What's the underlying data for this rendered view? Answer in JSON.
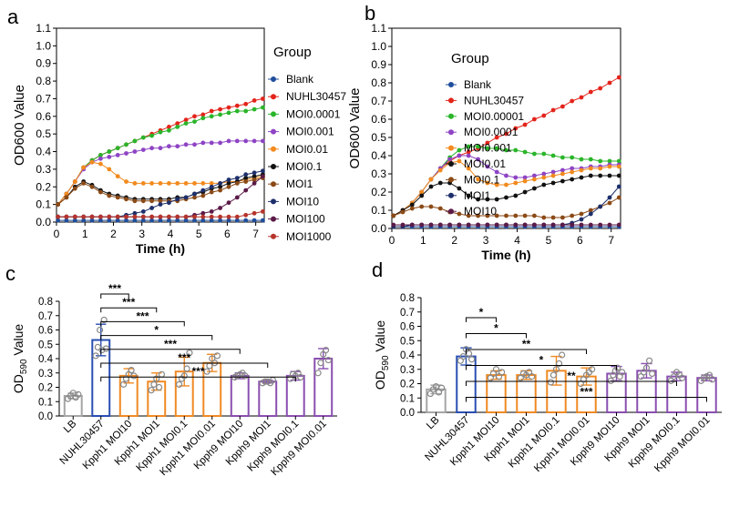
{
  "panel_labels": [
    "a",
    "b",
    "c",
    "d"
  ],
  "colors": {
    "Blank": "#1f4e9c",
    "NUHL30457": "#e3241b",
    "MOI0.00001": "#2ab52a",
    "MOI0.0001": "#2ab52a",
    "MOI0.001": "#8e44c4",
    "MOI0.01": "#f28a1e",
    "MOI0.1": "#111111",
    "MOI1": "#8b4a16",
    "MOI10": "#1d2f6b",
    "MOI100": "#5b1a47",
    "MOI1000": "#b5342b",
    "gray": "#a6a6a6",
    "blue": "#2a4fb3",
    "orange": "#f08a24",
    "purple": "#8a4fb0"
  },
  "chart_data": [
    {
      "panel": "a",
      "type": "line",
      "xlabel": "Time (h)",
      "ylabel": "OD600 Value",
      "xlim": [
        0,
        7.3
      ],
      "ylim": [
        0,
        1.1
      ],
      "xticks": [
        "0",
        "1",
        "2",
        "3",
        "4",
        "5",
        "6",
        "7"
      ],
      "yticks": [
        "0.0",
        "0.1",
        "0.2",
        "0.3",
        "0.4",
        "0.5",
        "0.6",
        "0.7",
        "0.8",
        "0.9",
        "1.0",
        "1.1"
      ],
      "legend_title": "Group",
      "x": [
        0.05,
        0.35,
        0.65,
        0.95,
        1.25,
        1.55,
        1.85,
        2.15,
        2.45,
        2.75,
        3.05,
        3.35,
        3.65,
        3.95,
        4.25,
        4.55,
        4.85,
        5.15,
        5.45,
        5.75,
        6.05,
        6.35,
        6.65,
        6.95,
        7.25
      ],
      "series": [
        {
          "name": "Blank",
          "color": "#1f4e9c",
          "values": [
            0.01,
            0.01,
            0.01,
            0.01,
            0.01,
            0.01,
            0.01,
            0.01,
            0.01,
            0.01,
            0.01,
            0.01,
            0.01,
            0.01,
            0.01,
            0.01,
            0.01,
            0.01,
            0.01,
            0.01,
            0.01,
            0.01,
            0.01,
            0.01,
            0.01
          ]
        },
        {
          "name": "NUHL30457",
          "color": "#e3241b",
          "values": [
            0.1,
            0.16,
            0.23,
            0.31,
            0.35,
            0.38,
            0.4,
            0.42,
            0.44,
            0.46,
            0.48,
            0.5,
            0.52,
            0.54,
            0.56,
            0.58,
            0.6,
            0.61,
            0.63,
            0.64,
            0.65,
            0.66,
            0.67,
            0.69,
            0.7
          ]
        },
        {
          "name": "MOI0.0001",
          "color": "#2ab52a",
          "values": [
            0.1,
            0.16,
            0.23,
            0.31,
            0.35,
            0.38,
            0.4,
            0.42,
            0.44,
            0.46,
            0.48,
            0.49,
            0.51,
            0.52,
            0.54,
            0.56,
            0.57,
            0.59,
            0.6,
            0.61,
            0.62,
            0.63,
            0.63,
            0.64,
            0.65
          ]
        },
        {
          "name": "MOI0.001",
          "color": "#8e44c4",
          "values": [
            0.1,
            0.16,
            0.23,
            0.3,
            0.34,
            0.36,
            0.37,
            0.38,
            0.39,
            0.4,
            0.41,
            0.42,
            0.42,
            0.43,
            0.43,
            0.44,
            0.44,
            0.45,
            0.45,
            0.45,
            0.46,
            0.46,
            0.46,
            0.46,
            0.46
          ]
        },
        {
          "name": "MOI0.01",
          "color": "#f28a1e",
          "values": [
            0.1,
            0.16,
            0.23,
            0.31,
            0.34,
            0.33,
            0.3,
            0.26,
            0.23,
            0.22,
            0.22,
            0.22,
            0.22,
            0.22,
            0.22,
            0.22,
            0.22,
            0.22,
            0.22,
            0.22,
            0.23,
            0.23,
            0.24,
            0.25,
            0.26
          ]
        },
        {
          "name": "MOI0.1",
          "color": "#111111",
          "values": [
            0.1,
            0.14,
            0.2,
            0.23,
            0.21,
            0.18,
            0.16,
            0.15,
            0.14,
            0.13,
            0.13,
            0.13,
            0.13,
            0.13,
            0.14,
            0.14,
            0.16,
            0.17,
            0.19,
            0.2,
            0.22,
            0.23,
            0.25,
            0.26,
            0.27
          ]
        },
        {
          "name": "MOI1",
          "color": "#8b4a16",
          "values": [
            0.1,
            0.14,
            0.19,
            0.22,
            0.2,
            0.17,
            0.15,
            0.14,
            0.13,
            0.12,
            0.12,
            0.12,
            0.12,
            0.12,
            0.12,
            0.13,
            0.14,
            0.15,
            0.17,
            0.18,
            0.2,
            0.22,
            0.23,
            0.24,
            0.25
          ]
        },
        {
          "name": "MOI10",
          "color": "#1d2f6b",
          "values": [
            0.03,
            0.03,
            0.03,
            0.03,
            0.03,
            0.03,
            0.03,
            0.03,
            0.04,
            0.05,
            0.06,
            0.08,
            0.1,
            0.11,
            0.13,
            0.14,
            0.16,
            0.18,
            0.2,
            0.22,
            0.24,
            0.25,
            0.27,
            0.28,
            0.29
          ]
        },
        {
          "name": "MOI100",
          "color": "#5b1a47",
          "values": [
            0.03,
            0.03,
            0.03,
            0.03,
            0.03,
            0.03,
            0.03,
            0.03,
            0.03,
            0.03,
            0.03,
            0.03,
            0.03,
            0.03,
            0.03,
            0.03,
            0.04,
            0.05,
            0.06,
            0.08,
            0.11,
            0.14,
            0.18,
            0.22,
            0.26
          ]
        },
        {
          "name": "MOI1000",
          "color": "#b5342b",
          "values": [
            0.03,
            0.03,
            0.03,
            0.03,
            0.03,
            0.03,
            0.03,
            0.03,
            0.03,
            0.03,
            0.03,
            0.03,
            0.03,
            0.03,
            0.03,
            0.03,
            0.03,
            0.03,
            0.03,
            0.03,
            0.03,
            0.03,
            0.04,
            0.05,
            0.06
          ]
        }
      ]
    },
    {
      "panel": "b",
      "type": "line",
      "xlabel": "Time (h)",
      "ylabel": "OD600 Value",
      "xlim": [
        0,
        7.3
      ],
      "ylim": [
        0,
        1.1
      ],
      "xticks": [
        "0",
        "1",
        "2",
        "3",
        "4",
        "5",
        "6",
        "7"
      ],
      "yticks": [
        "0.0",
        "0.1",
        "0.2",
        "0.3",
        "0.4",
        "0.5",
        "0.6",
        "0.7",
        "0.8",
        "0.9",
        "1.0",
        "1.1"
      ],
      "legend_title": "Group",
      "x": [
        0.05,
        0.35,
        0.65,
        0.95,
        1.25,
        1.55,
        1.85,
        2.15,
        2.45,
        2.75,
        3.05,
        3.35,
        3.65,
        3.95,
        4.25,
        4.55,
        4.85,
        5.15,
        5.45,
        5.75,
        6.05,
        6.35,
        6.65,
        6.95,
        7.25
      ],
      "series": [
        {
          "name": "Blank",
          "color": "#1f4e9c",
          "values": [
            0.01,
            0.01,
            0.01,
            0.01,
            0.01,
            0.01,
            0.01,
            0.01,
            0.01,
            0.01,
            0.01,
            0.01,
            0.01,
            0.01,
            0.01,
            0.01,
            0.01,
            0.01,
            0.01,
            0.01,
            0.01,
            0.01,
            0.01,
            0.01,
            0.01
          ]
        },
        {
          "name": "NUHL30457",
          "color": "#e3241b",
          "values": [
            0.07,
            0.1,
            0.14,
            0.2,
            0.27,
            0.33,
            0.37,
            0.4,
            0.42,
            0.44,
            0.47,
            0.5,
            0.52,
            0.55,
            0.57,
            0.6,
            0.62,
            0.65,
            0.67,
            0.7,
            0.72,
            0.75,
            0.77,
            0.8,
            0.83
          ]
        },
        {
          "name": "MOI0.00001",
          "color": "#2ab52a",
          "values": [
            0.07,
            0.1,
            0.14,
            0.2,
            0.27,
            0.33,
            0.39,
            0.43,
            0.45,
            0.45,
            0.44,
            0.44,
            0.43,
            0.43,
            0.42,
            0.41,
            0.41,
            0.4,
            0.39,
            0.39,
            0.38,
            0.38,
            0.37,
            0.37,
            0.37
          ]
        },
        {
          "name": "MOI0.0001",
          "color": "#8e44c4",
          "values": [
            0.07,
            0.1,
            0.14,
            0.2,
            0.27,
            0.33,
            0.38,
            0.4,
            0.4,
            0.38,
            0.34,
            0.31,
            0.29,
            0.28,
            0.28,
            0.29,
            0.3,
            0.31,
            0.32,
            0.33,
            0.33,
            0.34,
            0.34,
            0.35,
            0.35
          ]
        },
        {
          "name": "MOI0.001",
          "color": "#f28a1e",
          "values": [
            0.07,
            0.1,
            0.14,
            0.2,
            0.27,
            0.32,
            0.36,
            0.37,
            0.33,
            0.27,
            0.25,
            0.24,
            0.24,
            0.25,
            0.26,
            0.27,
            0.28,
            0.29,
            0.3,
            0.31,
            0.32,
            0.33,
            0.33,
            0.34,
            0.34
          ]
        },
        {
          "name": "MOI0.01",
          "color": "#111111",
          "values": [
            0.07,
            0.1,
            0.13,
            0.18,
            0.23,
            0.25,
            0.25,
            0.22,
            0.18,
            0.16,
            0.16,
            0.16,
            0.17,
            0.18,
            0.2,
            0.22,
            0.24,
            0.25,
            0.26,
            0.27,
            0.28,
            0.29,
            0.29,
            0.29,
            0.29
          ]
        },
        {
          "name": "MOI0.1",
          "color": "#8b4a16",
          "values": [
            0.07,
            0.09,
            0.11,
            0.12,
            0.12,
            0.11,
            0.09,
            0.08,
            0.07,
            0.07,
            0.07,
            0.07,
            0.07,
            0.07,
            0.07,
            0.07,
            0.06,
            0.06,
            0.06,
            0.07,
            0.08,
            0.1,
            0.12,
            0.14,
            0.17
          ]
        },
        {
          "name": "MOI1",
          "color": "#1d2f6b",
          "values": [
            0.01,
            0.01,
            0.02,
            0.02,
            0.02,
            0.02,
            0.02,
            0.02,
            0.02,
            0.02,
            0.02,
            0.02,
            0.02,
            0.02,
            0.02,
            0.02,
            0.02,
            0.02,
            0.02,
            0.03,
            0.05,
            0.08,
            0.12,
            0.17,
            0.23
          ]
        },
        {
          "name": "MOI10",
          "color": "#5b1a47",
          "values": [
            0.02,
            0.02,
            0.02,
            0.02,
            0.02,
            0.02,
            0.02,
            0.02,
            0.02,
            0.02,
            0.02,
            0.02,
            0.02,
            0.02,
            0.02,
            0.02,
            0.02,
            0.02,
            0.02,
            0.02,
            0.02,
            0.02,
            0.02,
            0.02,
            0.02
          ]
        }
      ]
    },
    {
      "panel": "c",
      "type": "bar",
      "ylabel_main": "OD",
      "ylabel_sub": "590",
      "ylabel_tail": " Value",
      "ylim": [
        0,
        0.8
      ],
      "yticks": [
        "0.0",
        "0.1",
        "0.2",
        "0.3",
        "0.4",
        "0.5",
        "0.6",
        "0.7",
        "0.8"
      ],
      "categories": [
        "LB",
        "NUHL30457",
        "Kpph1 MOI10",
        "Kpph1 MOI1",
        "Kpph1 MOI0.1",
        "Kpph1 MOI0.01",
        "Kpph9 MOI10",
        "Kpph9 MOI1",
        "Kpph9 MOI0.1",
        "Kpph9 MOI0.01"
      ],
      "values": [
        0.14,
        0.53,
        0.28,
        0.24,
        0.31,
        0.37,
        0.28,
        0.24,
        0.28,
        0.4
      ],
      "errors": [
        0.02,
        0.11,
        0.05,
        0.06,
        0.1,
        0.06,
        0.02,
        0.01,
        0.03,
        0.07
      ],
      "bar_colors": [
        "gray",
        "blue",
        "orange",
        "orange",
        "orange",
        "orange",
        "purple",
        "purple",
        "purple",
        "purple"
      ],
      "points": [
        [
          0.12,
          0.14,
          0.16,
          0.13,
          0.15
        ],
        [
          0.42,
          0.48,
          0.6,
          0.46,
          0.67,
          0.47
        ],
        [
          0.22,
          0.26,
          0.29,
          0.32,
          0.28
        ],
        [
          0.18,
          0.22,
          0.26,
          0.2,
          0.29
        ],
        [
          0.22,
          0.26,
          0.28,
          0.33,
          0.44
        ],
        [
          0.31,
          0.35,
          0.4,
          0.37,
          0.42
        ],
        [
          0.27,
          0.28,
          0.29,
          0.3,
          0.28
        ],
        [
          0.23,
          0.24,
          0.24,
          0.23,
          0.25
        ],
        [
          0.26,
          0.29,
          0.28,
          0.3,
          0.27
        ],
        [
          0.3,
          0.37,
          0.43,
          0.46,
          0.39
        ]
      ],
      "significance": [
        {
          "from": 1,
          "to": 2,
          "label": "***"
        },
        {
          "from": 1,
          "to": 3,
          "label": "***"
        },
        {
          "from": 1,
          "to": 4,
          "label": "***"
        },
        {
          "from": 1,
          "to": 5,
          "label": "*"
        },
        {
          "from": 1,
          "to": 6,
          "label": "***"
        },
        {
          "from": 1,
          "to": 7,
          "label": "***"
        },
        {
          "from": 1,
          "to": 8,
          "label": "***"
        }
      ]
    },
    {
      "panel": "d",
      "type": "bar",
      "ylabel_main": "OD",
      "ylabel_sub": "590",
      "ylabel_tail": " Value",
      "ylim": [
        0,
        0.8
      ],
      "yticks": [
        "0.0",
        "0.1",
        "0.2",
        "0.3",
        "0.4",
        "0.5",
        "0.6",
        "0.7",
        "0.8"
      ],
      "categories": [
        "LB",
        "NUHL30457",
        "Kpph1 MOI10",
        "Kpph1 MOI1",
        "Kpph1 MOI0.1",
        "Kpph1 MOI0.01",
        "Kpph9 MOI10",
        "Kpph9 MOI1",
        "Kpph9 MOI0.1",
        "Kpph9 MOI0.01"
      ],
      "values": [
        0.16,
        0.39,
        0.26,
        0.26,
        0.29,
        0.25,
        0.27,
        0.29,
        0.25,
        0.24
      ],
      "errors": [
        0.03,
        0.06,
        0.03,
        0.03,
        0.1,
        0.06,
        0.05,
        0.05,
        0.03,
        0.02
      ],
      "bar_colors": [
        "gray",
        "blue",
        "orange",
        "orange",
        "orange",
        "orange",
        "purple",
        "purple",
        "purple",
        "purple"
      ],
      "points": [
        [
          0.13,
          0.16,
          0.18,
          0.14,
          0.17
        ],
        [
          0.36,
          0.39,
          0.44,
          0.41,
          0.37
        ],
        [
          0.24,
          0.27,
          0.3,
          0.25,
          0.28
        ],
        [
          0.24,
          0.27,
          0.26,
          0.28,
          0.25
        ],
        [
          0.21,
          0.26,
          0.3,
          0.34,
          0.4
        ],
        [
          0.2,
          0.23,
          0.26,
          0.28,
          0.3
        ],
        [
          0.22,
          0.26,
          0.29,
          0.31,
          0.25,
          0.28
        ],
        [
          0.25,
          0.28,
          0.31,
          0.36,
          0.27
        ],
        [
          0.22,
          0.25,
          0.28,
          0.26,
          0.24
        ],
        [
          0.22,
          0.24,
          0.25,
          0.26,
          0.23
        ]
      ],
      "significance": [
        {
          "from": 1,
          "to": 2,
          "label": "*"
        },
        {
          "from": 1,
          "to": 3,
          "label": "*"
        },
        {
          "from": 1,
          "to": 5,
          "label": "**"
        },
        {
          "from": 1,
          "to": 6,
          "label": "*"
        },
        {
          "from": 1,
          "to": 8,
          "label": "**"
        },
        {
          "from": 1,
          "to": 9,
          "label": "***"
        }
      ]
    }
  ]
}
